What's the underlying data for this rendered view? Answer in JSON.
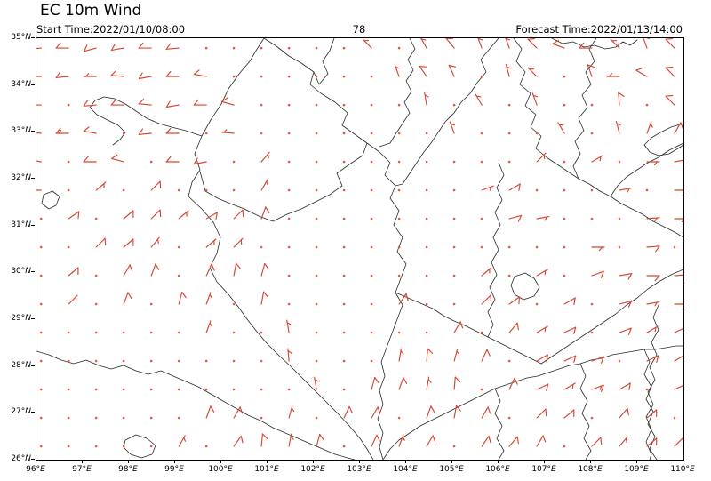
{
  "title": "EC 10m Wind",
  "header": {
    "start_time": "Start Time:2022/01/10/08:00",
    "center_label": "78",
    "forecast_time": "Forecast Time:2022/01/13/14:00"
  },
  "colors": {
    "barb": "#d8452f",
    "calm_dot": "#e25a41",
    "boundary": "#2a2a2a",
    "frame": "#000000",
    "background": "#ffffff",
    "text": "#000000"
  },
  "chart_data": {
    "type": "barb",
    "title": "EC 10m Wind",
    "units": "knots",
    "calm_threshold": 3,
    "x_axis": {
      "min": 96,
      "max": 110,
      "tick_step": 1,
      "tick_labels": [
        "96°E",
        "97°E",
        "98°E",
        "99°E",
        "100°E",
        "101°E",
        "102°E",
        "103°E",
        "104°E",
        "105°E",
        "106°E",
        "107°E",
        "108°E",
        "109°E",
        "110°E"
      ]
    },
    "y_axis": {
      "min": 26,
      "max": 35,
      "tick_step": 1,
      "tick_labels": [
        "35°N",
        "34°N",
        "33°N",
        "32°N",
        "31°N",
        "30°N",
        "29°N",
        "28°N",
        "27°N",
        "26°N"
      ]
    },
    "grid": {
      "lon_start": 96.1,
      "lon_step": 0.596,
      "cols": 24,
      "lat_start": 34.79,
      "lat_step": 0.6075,
      "rows": 15
    },
    "cells": [
      [
        [
          265,
          10
        ],
        [
          270,
          10
        ],
        [
          255,
          10
        ],
        [
          260,
          10
        ],
        [
          270,
          10
        ],
        [
          265,
          10
        ],
        [
          0,
          0
        ],
        [
          0,
          0
        ],
        [
          0,
          0
        ],
        [
          0,
          0
        ],
        [
          0,
          0
        ],
        [
          0,
          0
        ],
        [
          315,
          5
        ],
        [
          0,
          0
        ],
        [
          330,
          5
        ],
        [
          320,
          10
        ],
        [
          340,
          5
        ],
        [
          340,
          5
        ],
        [
          315,
          10
        ],
        [
          290,
          10
        ],
        [
          270,
          10
        ],
        [
          315,
          5
        ],
        [
          340,
          10
        ],
        [
          315,
          10
        ]
      ],
      [
        [
          270,
          10
        ],
        [
          265,
          10
        ],
        [
          270,
          5
        ],
        [
          275,
          10
        ],
        [
          260,
          10
        ],
        [
          270,
          10
        ],
        [
          280,
          10
        ],
        [
          0,
          0
        ],
        [
          0,
          0
        ],
        [
          0,
          0
        ],
        [
          0,
          0
        ],
        [
          0,
          0
        ],
        [
          0,
          0
        ],
        [
          340,
          5
        ],
        [
          325,
          10
        ],
        [
          335,
          10
        ],
        [
          0,
          0
        ],
        [
          345,
          5
        ],
        [
          315,
          5
        ],
        [
          0,
          0
        ],
        [
          340,
          10
        ],
        [
          270,
          5
        ],
        [
          300,
          10
        ],
        [
          315,
          10
        ]
      ],
      [
        [
          270,
          10
        ],
        [
          0,
          0
        ],
        [
          265,
          10
        ],
        [
          270,
          10
        ],
        [
          275,
          10
        ],
        [
          260,
          10
        ],
        [
          270,
          10
        ],
        [
          285,
          10
        ],
        [
          0,
          0
        ],
        [
          0,
          0
        ],
        [
          0,
          0
        ],
        [
          0,
          0
        ],
        [
          0,
          0
        ],
        [
          0,
          0
        ],
        [
          350,
          5
        ],
        [
          0,
          0
        ],
        [
          330,
          5
        ],
        [
          0,
          0
        ],
        [
          340,
          5
        ],
        [
          0,
          0
        ],
        [
          0,
          0
        ],
        [
          355,
          10
        ],
        [
          0,
          0
        ],
        [
          315,
          10
        ]
      ],
      [
        [
          275,
          10
        ],
        [
          270,
          15
        ],
        [
          280,
          10
        ],
        [
          0,
          0
        ],
        [
          265,
          10
        ],
        [
          270,
          10
        ],
        [
          0,
          0
        ],
        [
          275,
          5
        ],
        [
          0,
          0
        ],
        [
          0,
          0
        ],
        [
          0,
          0
        ],
        [
          0,
          0
        ],
        [
          0,
          0
        ],
        [
          0,
          0
        ],
        [
          0,
          0
        ],
        [
          340,
          5
        ],
        [
          0,
          0
        ],
        [
          0,
          0
        ],
        [
          0,
          0
        ],
        [
          330,
          5
        ],
        [
          0,
          0
        ],
        [
          345,
          5
        ],
        [
          20,
          5
        ],
        [
          30,
          10
        ]
      ],
      [
        [
          280,
          10
        ],
        [
          0,
          0
        ],
        [
          270,
          10
        ],
        [
          285,
          10
        ],
        [
          0,
          0
        ],
        [
          270,
          10
        ],
        [
          260,
          10
        ],
        [
          0,
          0
        ],
        [
          40,
          5
        ],
        [
          0,
          0
        ],
        [
          0,
          0
        ],
        [
          0,
          0
        ],
        [
          0,
          0
        ],
        [
          0,
          0
        ],
        [
          0,
          0
        ],
        [
          0,
          0
        ],
        [
          0,
          0
        ],
        [
          0,
          0
        ],
        [
          45,
          5
        ],
        [
          0,
          0
        ],
        [
          60,
          5
        ],
        [
          0,
          0
        ],
        [
          90,
          5
        ],
        [
          80,
          10
        ]
      ],
      [
        [
          270,
          10
        ],
        [
          0,
          0
        ],
        [
          50,
          5
        ],
        [
          0,
          0
        ],
        [
          45,
          10
        ],
        [
          0,
          0
        ],
        [
          0,
          0
        ],
        [
          0,
          0
        ],
        [
          30,
          5
        ],
        [
          0,
          0
        ],
        [
          0,
          0
        ],
        [
          0,
          0
        ],
        [
          0,
          0
        ],
        [
          0,
          0
        ],
        [
          0,
          0
        ],
        [
          0,
          0
        ],
        [
          70,
          5
        ],
        [
          60,
          10
        ],
        [
          0,
          0
        ],
        [
          0,
          0
        ],
        [
          0,
          0
        ],
        [
          80,
          5
        ],
        [
          0,
          0
        ],
        [
          90,
          10
        ]
      ],
      [
        [
          0,
          0
        ],
        [
          55,
          10
        ],
        [
          0,
          0
        ],
        [
          50,
          10
        ],
        [
          45,
          10
        ],
        [
          50,
          5
        ],
        [
          60,
          10
        ],
        [
          45,
          10
        ],
        [
          20,
          10
        ],
        [
          0,
          0
        ],
        [
          0,
          0
        ],
        [
          0,
          0
        ],
        [
          0,
          0
        ],
        [
          0,
          0
        ],
        [
          0,
          0
        ],
        [
          0,
          0
        ],
        [
          0,
          0
        ],
        [
          75,
          10
        ],
        [
          80,
          5
        ],
        [
          0,
          0
        ],
        [
          0,
          0
        ],
        [
          0,
          0
        ],
        [
          85,
          5
        ],
        [
          90,
          5
        ]
      ],
      [
        [
          0,
          0
        ],
        [
          0,
          0
        ],
        [
          45,
          10
        ],
        [
          50,
          10
        ],
        [
          40,
          5
        ],
        [
          0,
          0
        ],
        [
          50,
          5
        ],
        [
          45,
          5
        ],
        [
          0,
          0
        ],
        [
          0,
          0
        ],
        [
          0,
          0
        ],
        [
          0,
          0
        ],
        [
          0,
          0
        ],
        [
          0,
          0
        ],
        [
          0,
          0
        ],
        [
          0,
          0
        ],
        [
          0,
          0
        ],
        [
          0,
          0
        ],
        [
          0,
          0
        ],
        [
          0,
          0
        ],
        [
          90,
          5
        ],
        [
          0,
          0
        ],
        [
          85,
          10
        ],
        [
          0,
          0
        ]
      ],
      [
        [
          0,
          0
        ],
        [
          50,
          10
        ],
        [
          0,
          0
        ],
        [
          30,
          10
        ],
        [
          20,
          10
        ],
        [
          0,
          0
        ],
        [
          25,
          10
        ],
        [
          10,
          10
        ],
        [
          15,
          10
        ],
        [
          0,
          0
        ],
        [
          0,
          0
        ],
        [
          0,
          0
        ],
        [
          0,
          0
        ],
        [
          0,
          0
        ],
        [
          0,
          0
        ],
        [
          0,
          0
        ],
        [
          50,
          5
        ],
        [
          0,
          0
        ],
        [
          60,
          5
        ],
        [
          0,
          0
        ],
        [
          70,
          10
        ],
        [
          80,
          10
        ],
        [
          90,
          10
        ],
        [
          85,
          10
        ]
      ],
      [
        [
          0,
          0
        ],
        [
          45,
          5
        ],
        [
          0,
          0
        ],
        [
          20,
          10
        ],
        [
          0,
          0
        ],
        [
          15,
          10
        ],
        [
          20,
          5
        ],
        [
          0,
          0
        ],
        [
          10,
          10
        ],
        [
          0,
          0
        ],
        [
          0,
          0
        ],
        [
          0,
          0
        ],
        [
          0,
          0
        ],
        [
          35,
          10
        ],
        [
          0,
          0
        ],
        [
          0,
          0
        ],
        [
          45,
          10
        ],
        [
          55,
          10
        ],
        [
          0,
          0
        ],
        [
          60,
          10
        ],
        [
          0,
          0
        ],
        [
          75,
          10
        ],
        [
          80,
          5
        ],
        [
          90,
          10
        ]
      ],
      [
        [
          0,
          0
        ],
        [
          0,
          0
        ],
        [
          0,
          0
        ],
        [
          0,
          0
        ],
        [
          0,
          0
        ],
        [
          0,
          0
        ],
        [
          20,
          5
        ],
        [
          0,
          0
        ],
        [
          0,
          0
        ],
        [
          350,
          5
        ],
        [
          0,
          0
        ],
        [
          0,
          0
        ],
        [
          0,
          0
        ],
        [
          0,
          0
        ],
        [
          0,
          0
        ],
        [
          30,
          10
        ],
        [
          0,
          0
        ],
        [
          40,
          10
        ],
        [
          60,
          5
        ],
        [
          65,
          10
        ],
        [
          0,
          0
        ],
        [
          70,
          10
        ],
        [
          60,
          5
        ],
        [
          65,
          10
        ]
      ],
      [
        [
          0,
          0
        ],
        [
          0,
          0
        ],
        [
          0,
          0
        ],
        [
          0,
          0
        ],
        [
          0,
          0
        ],
        [
          0,
          0
        ],
        [
          0,
          0
        ],
        [
          0,
          0
        ],
        [
          0,
          0
        ],
        [
          355,
          5
        ],
        [
          0,
          0
        ],
        [
          0,
          0
        ],
        [
          0,
          0
        ],
        [
          10,
          5
        ],
        [
          5,
          10
        ],
        [
          15,
          5
        ],
        [
          25,
          10
        ],
        [
          0,
          0
        ],
        [
          60,
          10
        ],
        [
          65,
          10
        ],
        [
          70,
          10
        ],
        [
          0,
          0
        ],
        [
          65,
          10
        ],
        [
          60,
          10
        ]
      ],
      [
        [
          0,
          0
        ],
        [
          0,
          0
        ],
        [
          0,
          0
        ],
        [
          0,
          0
        ],
        [
          0,
          0
        ],
        [
          0,
          0
        ],
        [
          0,
          0
        ],
        [
          0,
          0
        ],
        [
          0,
          0
        ],
        [
          0,
          0
        ],
        [
          350,
          5
        ],
        [
          0,
          0
        ],
        [
          15,
          10
        ],
        [
          20,
          10
        ],
        [
          10,
          5
        ],
        [
          5,
          10
        ],
        [
          0,
          0
        ],
        [
          25,
          10
        ],
        [
          65,
          10
        ],
        [
          60,
          5
        ],
        [
          70,
          15
        ],
        [
          60,
          10
        ],
        [
          0,
          0
        ],
        [
          65,
          10
        ]
      ],
      [
        [
          0,
          0
        ],
        [
          0,
          0
        ],
        [
          0,
          0
        ],
        [
          0,
          0
        ],
        [
          0,
          0
        ],
        [
          0,
          0
        ],
        [
          20,
          10
        ],
        [
          30,
          10
        ],
        [
          0,
          0
        ],
        [
          15,
          5
        ],
        [
          0,
          0
        ],
        [
          25,
          10
        ],
        [
          30,
          10
        ],
        [
          0,
          0
        ],
        [
          20,
          10
        ],
        [
          10,
          10
        ],
        [
          30,
          10
        ],
        [
          0,
          0
        ],
        [
          45,
          10
        ],
        [
          50,
          10
        ],
        [
          0,
          0
        ],
        [
          40,
          10
        ],
        [
          50,
          10
        ],
        [
          0,
          0
        ]
      ],
      [
        [
          0,
          0
        ],
        [
          0,
          0
        ],
        [
          0,
          0
        ],
        [
          0,
          0
        ],
        [
          0,
          0
        ],
        [
          30,
          5
        ],
        [
          0,
          0
        ],
        [
          35,
          10
        ],
        [
          5,
          10
        ],
        [
          10,
          5
        ],
        [
          15,
          10
        ],
        [
          0,
          0
        ],
        [
          25,
          10
        ],
        [
          20,
          5
        ],
        [
          30,
          10
        ],
        [
          0,
          0
        ],
        [
          35,
          10
        ],
        [
          40,
          10
        ],
        [
          30,
          10
        ],
        [
          0,
          0
        ],
        [
          45,
          10
        ],
        [
          40,
          5
        ],
        [
          50,
          10
        ],
        [
          45,
          10
        ]
      ]
    ]
  }
}
